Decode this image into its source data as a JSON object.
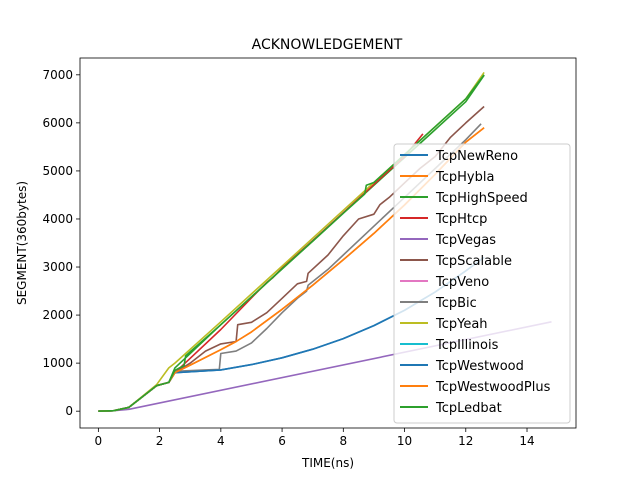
{
  "chart_data": {
    "type": "line",
    "title": "ACKNOWLEDGEMENT",
    "xlabel": "TIME(ns)",
    "ylabel": "SEGMENT(360bytes)",
    "xlim": [
      -0.6,
      15.6
    ],
    "ylim": [
      -350,
      7350
    ],
    "xticks": [
      0,
      2,
      4,
      6,
      8,
      10,
      12,
      14
    ],
    "yticks": [
      0,
      1000,
      2000,
      3000,
      4000,
      5000,
      6000,
      7000
    ],
    "xtick_labels": [
      "0",
      "2",
      "4",
      "6",
      "8",
      "10",
      "12",
      "14"
    ],
    "ytick_labels": [
      "0",
      "1000",
      "2000",
      "3000",
      "4000",
      "5000",
      "6000",
      "7000"
    ],
    "legend_position": "center-right",
    "series": [
      {
        "name": "TcpNewReno",
        "color": "#1f77b4",
        "x": [
          0,
          0.5,
          1,
          1.9,
          2.3,
          2.5,
          4,
          5,
          6,
          7,
          8,
          9,
          10,
          11,
          12,
          12.6
        ],
        "y": [
          0,
          10,
          80,
          530,
          600,
          800,
          860,
          970,
          1110,
          1290,
          1510,
          1780,
          2100,
          2480,
          2920,
          3200
        ]
      },
      {
        "name": "TcpHybla",
        "color": "#ff7f0e",
        "x": [
          0,
          0.5,
          1,
          1.9,
          2.3,
          2.5,
          3,
          4,
          4.5,
          5,
          6,
          7,
          8,
          9,
          10,
          11,
          12,
          12.6
        ],
        "y": [
          0,
          10,
          80,
          530,
          600,
          800,
          960,
          1280,
          1450,
          1650,
          2120,
          2620,
          3150,
          3700,
          4290,
          4930,
          5600,
          5900
        ]
      },
      {
        "name": "TcpHighSpeed",
        "color": "#2ca02c",
        "x": [
          0,
          0.5,
          1,
          1.9,
          2.3,
          2.5,
          4,
          5,
          6,
          7,
          8,
          9,
          10,
          11,
          12,
          12.6
        ],
        "y": [
          0,
          10,
          80,
          530,
          600,
          900,
          1800,
          2380,
          2960,
          3540,
          4120,
          4700,
          5280,
          5860,
          6440,
          6990
        ]
      },
      {
        "name": "TcpHtcp",
        "color": "#d62728",
        "x": [
          0,
          0.5,
          1,
          1.9,
          2.3,
          2.5,
          3,
          4,
          5,
          5.5,
          5.7,
          6,
          7,
          8,
          9,
          10,
          10.6
        ],
        "y": [
          0,
          10,
          80,
          530,
          600,
          800,
          1100,
          1700,
          2360,
          2680,
          2780,
          2980,
          3550,
          4130,
          4720,
          5300,
          5770
        ]
      },
      {
        "name": "TcpVegas",
        "color": "#9467bd",
        "x": [
          0,
          0.5,
          1,
          14.8
        ],
        "y": [
          0,
          10,
          40,
          1860
        ]
      },
      {
        "name": "TcpScalable",
        "color": "#8c564b",
        "x": [
          0,
          0.5,
          1,
          1.9,
          2.3,
          2.5,
          3,
          3.5,
          4,
          4.5,
          4.55,
          5,
          5.5,
          6,
          6.5,
          6.8,
          6.85,
          7.5,
          8,
          8.5,
          9,
          9.2,
          9.5,
          10,
          10.5,
          11,
          11.5,
          12,
          12.6
        ],
        "y": [
          0,
          10,
          80,
          530,
          600,
          800,
          1000,
          1250,
          1400,
          1450,
          1800,
          1850,
          2050,
          2350,
          2650,
          2700,
          2870,
          3250,
          3650,
          4000,
          4100,
          4300,
          4450,
          4750,
          5050,
          5300,
          5700,
          6000,
          6340
        ]
      },
      {
        "name": "TcpVeno",
        "color": "#e377c2",
        "x": [],
        "y": []
      },
      {
        "name": "TcpBic",
        "color": "#7f7f7f",
        "x": [
          0,
          0.5,
          1,
          1.9,
          2.3,
          2.5,
          3.5,
          3.95,
          4,
          4.5,
          5,
          5.5,
          6,
          6.5,
          6.8,
          6.85,
          7.5,
          8,
          9,
          10,
          11,
          12,
          12.5
        ],
        "y": [
          0,
          10,
          80,
          530,
          600,
          830,
          860,
          870,
          1200,
          1250,
          1420,
          1720,
          2050,
          2350,
          2500,
          2620,
          2950,
          3250,
          3850,
          4450,
          5050,
          5650,
          5980
        ]
      },
      {
        "name": "TcpYeah",
        "color": "#bcbd22",
        "x": [
          0,
          0.5,
          1,
          1.9,
          2.3,
          2.5,
          4,
          5,
          6,
          7,
          8,
          9,
          10,
          11,
          12,
          12.6
        ],
        "y": [
          0,
          10,
          80,
          550,
          900,
          1000,
          1860,
          2440,
          3020,
          3600,
          4180,
          4760,
          5340,
          5920,
          6500,
          7050
        ]
      },
      {
        "name": "TcpIllinois",
        "color": "#17becf",
        "x": [],
        "y": []
      },
      {
        "name": "TcpWestwood",
        "color": "#1f77b4",
        "x": [
          0,
          0.5,
          1,
          1.9,
          2.3,
          2.5,
          4,
          5,
          6,
          7,
          8,
          9,
          10,
          11,
          12,
          12.6
        ],
        "y": [
          0,
          10,
          80,
          530,
          600,
          800,
          860,
          970,
          1110,
          1290,
          1510,
          1780,
          2100,
          2480,
          2920,
          3200
        ]
      },
      {
        "name": "TcpWestwoodPlus",
        "color": "#ff7f0e",
        "x": [
          0,
          0.5,
          1,
          1.9,
          2.3,
          2.5,
          3,
          4,
          4.5,
          5,
          6,
          7,
          8,
          9,
          10,
          11,
          12,
          12.6
        ],
        "y": [
          0,
          10,
          80,
          530,
          600,
          800,
          960,
          1280,
          1450,
          1650,
          2120,
          2620,
          3150,
          3700,
          4290,
          4930,
          5600,
          5900
        ]
      },
      {
        "name": "TcpLedbat",
        "color": "#2ca02c",
        "x": [
          0,
          0.5,
          1,
          1.9,
          2.3,
          2.5,
          2.8,
          2.85,
          4,
          5,
          6,
          7,
          8,
          8.7,
          8.75,
          9,
          10,
          11,
          12,
          12.6
        ],
        "y": [
          0,
          10,
          80,
          530,
          600,
          850,
          950,
          1150,
          1800,
          2380,
          2960,
          3540,
          4120,
          4520,
          4700,
          4760,
          5340,
          5920,
          6500,
          7000
        ]
      }
    ]
  }
}
